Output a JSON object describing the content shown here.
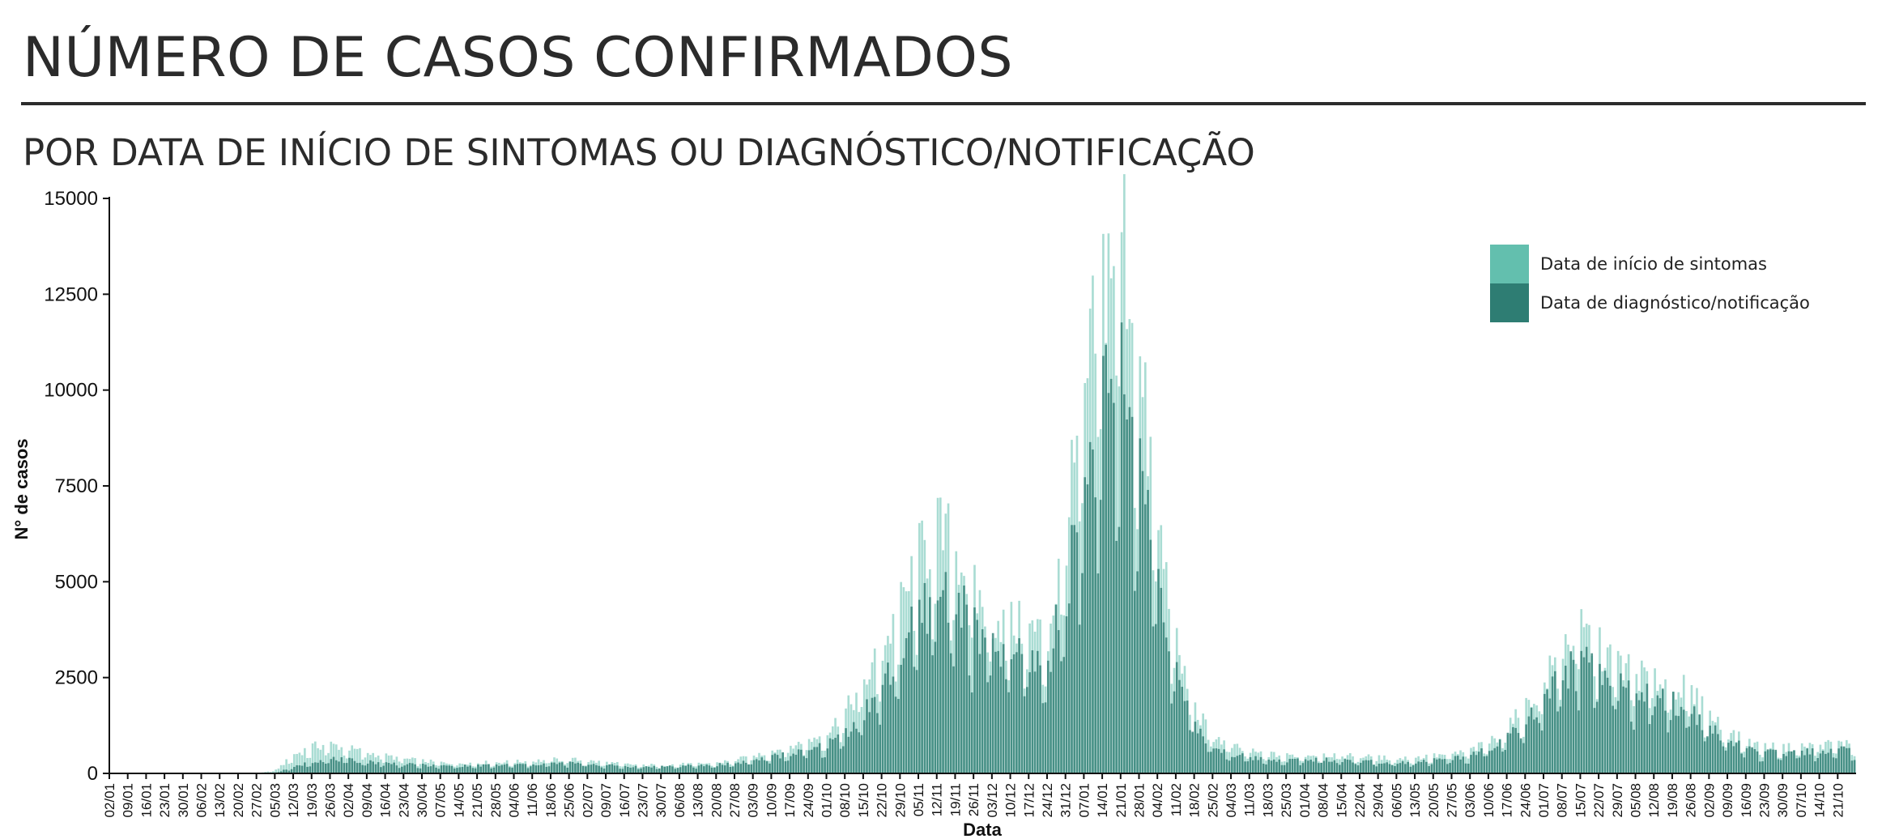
{
  "header": {
    "title": "NÚMERO DE CASOS CONFIRMADOS",
    "subtitle": "POR DATA DE INÍCIO DE SINTOMAS OU DIAGNÓSTICO/NOTIFICAÇÃO"
  },
  "chart_data": {
    "type": "bar",
    "xlabel": "Data",
    "ylabel": "N° de casos",
    "ylim": [
      0,
      15000
    ],
    "yticks": [
      0,
      2500,
      5000,
      7500,
      10000,
      12500,
      15000
    ],
    "xticks": [
      "02/01",
      "09/01",
      "16/01",
      "23/01",
      "30/01",
      "06/02",
      "13/02",
      "20/02",
      "27/02",
      "05/03",
      "12/03",
      "19/03",
      "26/03",
      "02/04",
      "09/04",
      "16/04",
      "23/04",
      "30/04",
      "07/05",
      "14/05",
      "21/05",
      "28/05",
      "04/06",
      "11/06",
      "18/06",
      "25/06",
      "02/07",
      "09/07",
      "16/07",
      "23/07",
      "30/07",
      "06/08",
      "13/08",
      "20/08",
      "27/08",
      "03/09",
      "10/09",
      "17/09",
      "24/09",
      "01/10",
      "08/10",
      "15/10",
      "22/10",
      "29/10",
      "05/11",
      "12/11",
      "19/11",
      "26/11",
      "03/12",
      "10/12",
      "17/12",
      "24/12",
      "31/12",
      "07/01",
      "14/01",
      "21/01",
      "28/01",
      "04/02",
      "11/02",
      "18/02",
      "25/02",
      "04/03",
      "11/03",
      "18/03",
      "25/03",
      "01/04",
      "08/04",
      "15/04",
      "22/04",
      "29/04",
      "06/05",
      "13/05",
      "20/05",
      "27/05",
      "03/06",
      "10/06",
      "17/06",
      "24/06",
      "01/07",
      "08/07",
      "15/07",
      "22/07",
      "29/07",
      "05/08",
      "12/08",
      "19/08",
      "26/08",
      "02/09",
      "09/09",
      "16/09",
      "23/09",
      "30/09",
      "07/10",
      "14/10",
      "21/10"
    ],
    "x_unit": "weekly tick labels (daily bars)",
    "series": [
      {
        "name": "Data de início de sintomas",
        "color": "#63bfae",
        "weekly_average": [
          0,
          0,
          0,
          0,
          0,
          0,
          0,
          0,
          0,
          80,
          450,
          650,
          700,
          600,
          500,
          420,
          350,
          300,
          260,
          250,
          260,
          270,
          280,
          300,
          330,
          340,
          300,
          260,
          220,
          200,
          210,
          220,
          230,
          260,
          320,
          420,
          550,
          650,
          800,
          1000,
          1500,
          2200,
          3000,
          4000,
          5200,
          5800,
          5500,
          4300,
          3800,
          3600,
          3500,
          3300,
          6000,
          9000,
          12000,
          13500,
          9500,
          6000,
          3000,
          1500,
          900,
          650,
          520,
          460,
          430,
          450,
          460,
          440,
          410,
          380,
          360,
          380,
          420,
          470,
          560,
          750,
          1100,
          1600,
          2200,
          3100,
          3500,
          3000,
          2700,
          2400,
          2300,
          2200,
          1900,
          1400,
          1000,
          750,
          650,
          620,
          650,
          700,
          720
        ]
      },
      {
        "name": "Data de diagnóstico/notificação",
        "color": "#2e7d73",
        "weekly_average": [
          0,
          0,
          0,
          0,
          0,
          0,
          0,
          0,
          0,
          20,
          150,
          300,
          350,
          320,
          280,
          250,
          220,
          200,
          180,
          180,
          190,
          200,
          210,
          220,
          240,
          250,
          230,
          200,
          170,
          160,
          170,
          180,
          190,
          210,
          250,
          320,
          400,
          480,
          550,
          700,
          1000,
          1500,
          2100,
          2900,
          3800,
          4400,
          4300,
          3400,
          3000,
          2900,
          2800,
          2600,
          4600,
          7000,
          8800,
          9500,
          7400,
          4800,
          2400,
          1100,
          650,
          460,
          380,
          340,
          320,
          330,
          340,
          330,
          300,
          280,
          270,
          280,
          320,
          360,
          430,
          580,
          850,
          1250,
          1700,
          2400,
          2700,
          2400,
          2100,
          1900,
          1800,
          1700,
          1500,
          1100,
          800,
          580,
          500,
          480,
          500,
          540,
          560
        ]
      }
    ],
    "legend_position": "top-right",
    "grid": false
  }
}
